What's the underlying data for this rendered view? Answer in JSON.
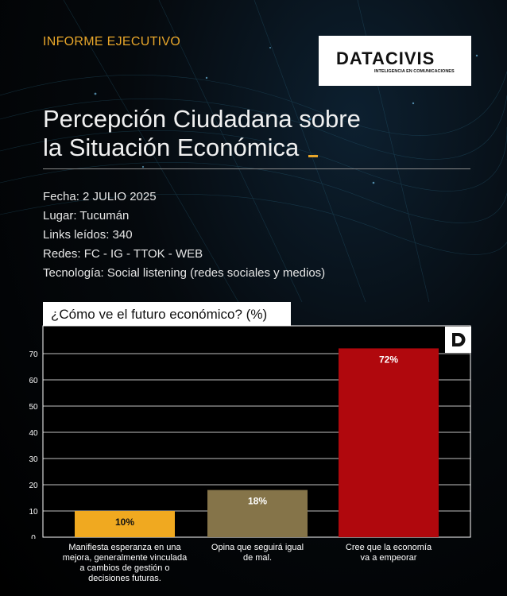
{
  "header": {
    "kicker": "INFORME EJECUTIVO",
    "logo_text": "DATACIVIS",
    "logo_tagline": "INTELIGENCIA EN COMUNICACIONES"
  },
  "title": {
    "line1": "Percepción Ciudadana sobre",
    "line2": "la Situación Económica"
  },
  "meta": [
    "Fecha: 2 JULIO 2025",
    "Lugar: Tucumán",
    "Links leídos: 340",
    "Redes: FC - IG - TTOK - WEB",
    "Tecnología: Social listening (redes sociales y medios)"
  ],
  "colors": {
    "accent": "#e8a62a",
    "bar1": "#f0a920",
    "bar2": "#857449",
    "bar3": "#b0080d"
  },
  "chart_data": {
    "type": "bar",
    "title": "¿Cómo ve el futuro económico? (%)",
    "categories": [
      "Manifiesta esperanza en una mejora, generalmente vinculada a cambios de gestión o decisiones futuras.",
      "Opina que seguirá igual de mal.",
      "Cree que la economía va a empeorar"
    ],
    "values": [
      10,
      18,
      72
    ],
    "value_labels": [
      "10%",
      "18%",
      "72%"
    ],
    "yticks": [
      0,
      10,
      20,
      30,
      40,
      50,
      60,
      70
    ],
    "ylim": [
      0,
      72
    ],
    "grid": true
  }
}
